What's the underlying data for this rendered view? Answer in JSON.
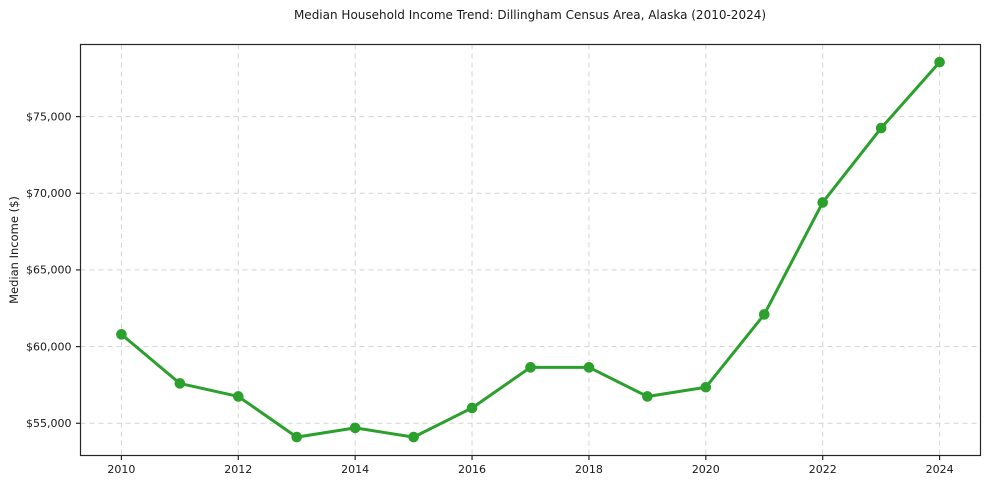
{
  "chart_data": {
    "type": "line",
    "title": "Median Household Income Trend: Dillingham Census Area, Alaska (2010-2024)",
    "xlabel": "",
    "ylabel": "Median Income ($)",
    "series": [
      {
        "name": "Median Household Income",
        "x": [
          2010,
          2011,
          2012,
          2013,
          2014,
          2015,
          2016,
          2017,
          2018,
          2019,
          2020,
          2021,
          2022,
          2023,
          2024
        ],
        "values": [
          60800,
          57600,
          56750,
          54100,
          54700,
          54100,
          56000,
          58650,
          58650,
          56750,
          57350,
          62100,
          69400,
          74250,
          78550
        ]
      }
    ],
    "xticks": [
      2010,
      2012,
      2014,
      2016,
      2018,
      2020,
      2022,
      2024
    ],
    "xtick_labels": [
      "2010",
      "2012",
      "2014",
      "2016",
      "2018",
      "2020",
      "2022",
      "2024"
    ],
    "yticks": [
      55000,
      60000,
      65000,
      70000,
      75000
    ],
    "ytick_labels": [
      "$55,000",
      "$60,000",
      "$65,000",
      "$70,000",
      "$75,000"
    ],
    "xlim": [
      2009.3,
      2024.7
    ],
    "ylim": [
      52900,
      79700
    ],
    "grid": true,
    "grid_style": "dashed",
    "legend": "none",
    "marker": "circle",
    "colors": {
      "line": "#2ca02c",
      "marker": "#2ca02c",
      "grid": "#d4d4d4",
      "spine": "#262626",
      "text": "#1a1a1a",
      "background": "#ffffff"
    }
  }
}
